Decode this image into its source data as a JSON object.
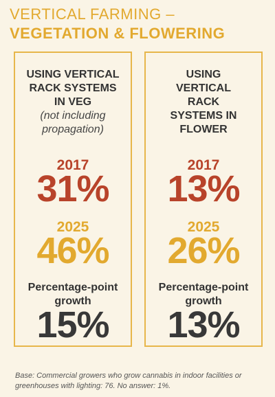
{
  "header": {
    "line1": "VERTICAL FARMING –",
    "line2": "VEGETATION & FLOWERING"
  },
  "panels": [
    {
      "heading": [
        "USING VERTICAL",
        "RACK SYSTEMS",
        "IN VEG"
      ],
      "note": [
        "(not including",
        "propagation)"
      ],
      "year1": "2017",
      "value1": "31%",
      "year2": "2025",
      "value2": "46%",
      "growth_label": [
        "Percentage-point",
        "growth"
      ],
      "growth": "15%"
    },
    {
      "heading": [
        "USING",
        "VERTICAL",
        "RACK",
        "SYSTEMS IN",
        "FLOWER"
      ],
      "note": [],
      "year1": "2017",
      "value1": "13%",
      "year2": "2025",
      "value2": "26%",
      "growth_label": [
        "Percentage-point",
        "growth"
      ],
      "growth": "13%"
    }
  ],
  "footnote": [
    "Base: Commercial growers who grow cannabis in indoor facilities or",
    "greenhouses with lighting: 76. No answer: 1%."
  ]
}
